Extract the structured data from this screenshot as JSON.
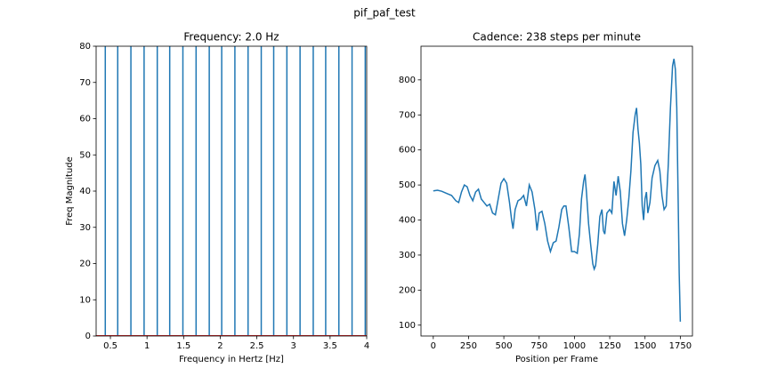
{
  "title": "pif_paf_test",
  "chart_data": [
    {
      "type": "stem",
      "title": "Frequency: 2.0 Hz",
      "x_label": "Frequency in Hertz [Hz]",
      "y_label": "Freq Magnitude",
      "x": [
        0.43,
        0.6,
        0.78,
        0.96,
        1.14,
        1.31,
        1.49,
        1.67,
        1.85,
        2.02,
        2.2,
        2.38,
        2.56,
        2.73,
        2.91,
        3.09,
        3.27,
        3.44,
        3.62,
        3.8,
        3.98
      ],
      "values": [
        100,
        100,
        100,
        100,
        100,
        100,
        100,
        100,
        100,
        100,
        100,
        100,
        100,
        100,
        100,
        100,
        100,
        100,
        100,
        100,
        100
      ],
      "color": "#1f77b4",
      "baseline_color": "#d62728",
      "xlim": [
        0.305,
        4.0
      ],
      "xticks": [
        0.5,
        1.0,
        1.5,
        2.0,
        2.5,
        3.0,
        3.5,
        4.0
      ],
      "ylim": [
        0,
        80
      ],
      "yticks": [
        0,
        10,
        20,
        30,
        40,
        50,
        60,
        70,
        80
      ]
    },
    {
      "type": "line",
      "title": "Cadence: 238 steps per minute",
      "x_label": "Position per Frame",
      "x": [
        0,
        30,
        60,
        100,
        130,
        160,
        180,
        200,
        220,
        240,
        260,
        280,
        300,
        320,
        340,
        360,
        380,
        400,
        420,
        440,
        460,
        480,
        500,
        520,
        540,
        555,
        565,
        580,
        600,
        620,
        640,
        660,
        680,
        700,
        720,
        735,
        750,
        770,
        790,
        810,
        830,
        850,
        870,
        890,
        910,
        925,
        940,
        960,
        980,
        1000,
        1020,
        1035,
        1050,
        1065,
        1075,
        1085,
        1100,
        1115,
        1130,
        1140,
        1150,
        1165,
        1180,
        1195,
        1205,
        1215,
        1230,
        1250,
        1265,
        1280,
        1295,
        1310,
        1325,
        1340,
        1355,
        1370,
        1385,
        1400,
        1415,
        1430,
        1440,
        1450,
        1460,
        1470,
        1480,
        1490,
        1500,
        1510,
        1520,
        1535,
        1550,
        1570,
        1590,
        1605,
        1620,
        1635,
        1650,
        1665,
        1680,
        1695,
        1705,
        1715,
        1725,
        1735,
        1742,
        1750
      ],
      "series": [
        {
          "color": "#1f77b4",
          "values": [
            483,
            485,
            482,
            475,
            470,
            455,
            450,
            480,
            500,
            495,
            470,
            455,
            480,
            488,
            460,
            450,
            440,
            445,
            420,
            415,
            460,
            505,
            518,
            505,
            450,
            400,
            375,
            430,
            455,
            460,
            470,
            440,
            500,
            480,
            430,
            370,
            420,
            425,
            390,
            340,
            310,
            335,
            340,
            380,
            430,
            440,
            440,
            380,
            310,
            310,
            305,
            360,
            460,
            510,
            530,
            480,
            390,
            330,
            275,
            260,
            270,
            330,
            410,
            430,
            370,
            360,
            420,
            430,
            420,
            510,
            470,
            525,
            480,
            390,
            355,
            400,
            460,
            540,
            650,
            700,
            720,
            660,
            620,
            560,
            440,
            400,
            460,
            480,
            420,
            450,
            520,
            555,
            570,
            540,
            470,
            430,
            440,
            560,
            720,
            840,
            860,
            830,
            720,
            450,
            250,
            110
          ]
        }
      ],
      "xlim": [
        -87,
        1836
      ],
      "xticks": [
        0,
        250,
        500,
        750,
        1000,
        1250,
        1500,
        1750
      ],
      "ylim": [
        69,
        896
      ],
      "yticks": [
        100,
        200,
        300,
        400,
        500,
        600,
        700,
        800
      ]
    }
  ]
}
